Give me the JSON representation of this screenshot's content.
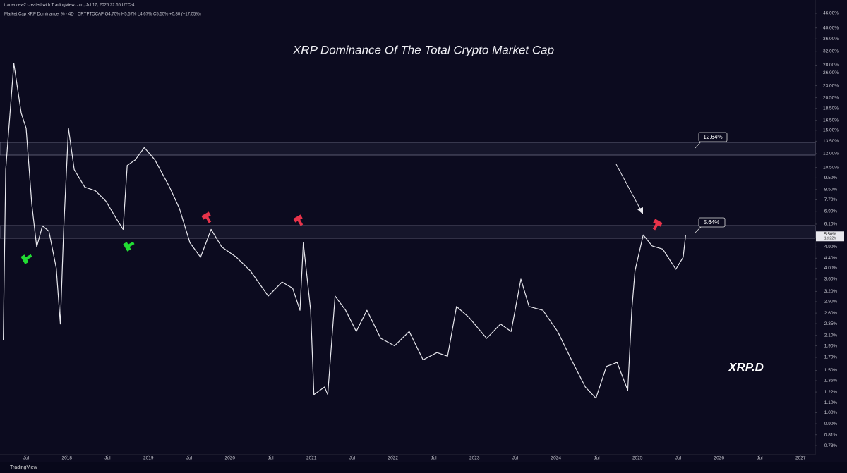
{
  "header": {
    "credit": "traderview2 created with TradingView.com, Jul 17, 2025 22:55 UTC-4",
    "symbol": "Market Cap XRP Dominance, % · 4D · CRYPTOCAP  O4.70% H5.57% L4.67% C5.50% +0.80 (+17.05%)"
  },
  "footer": "TradingView",
  "chart_data": {
    "type": "line",
    "title": "XRP Dominance Of The Total Crypto Market Cap",
    "watermark": "XRP.D",
    "price_label": "5.50%",
    "countdown": "1d 22h",
    "annotations": [
      "12.64%",
      "5.64%"
    ],
    "log_scale": true,
    "grid": false,
    "xlim": [
      2017.18,
      2027.18
    ],
    "ylim": [
      0.669,
      52.3
    ],
    "xticks": [
      {
        "value": 2017.5,
        "label": "Jul"
      },
      2018,
      {
        "value": 2018.5,
        "label": "Jul"
      },
      2019,
      {
        "value": 2019.5,
        "label": "Jul"
      },
      2020,
      {
        "value": 2020.5,
        "label": "Jul"
      },
      2021,
      {
        "value": 2021.5,
        "label": "Jul"
      },
      2022,
      {
        "value": 2022.5,
        "label": "Jul"
      },
      2023,
      {
        "value": 2023.5,
        "label": "Jul"
      },
      2024,
      {
        "value": 2024.5,
        "label": "Jul"
      },
      2025,
      {
        "value": 2025.5,
        "label": "Jul"
      },
      2026,
      {
        "value": 2026.5,
        "label": "Jul"
      },
      2027
    ],
    "yticks": [
      {
        "value": 46,
        "label": "46.00%"
      },
      {
        "value": 40,
        "label": "40.00%"
      },
      {
        "value": 36,
        "label": "36.00%"
      },
      {
        "value": 32,
        "label": "32.00%"
      },
      {
        "value": 28,
        "label": "28.00%"
      },
      {
        "value": 26,
        "label": "26.00%"
      },
      {
        "value": 23,
        "label": "23.00%"
      },
      {
        "value": 20.5,
        "label": "20.50%"
      },
      {
        "value": 18.5,
        "label": "18.50%"
      },
      {
        "value": 16.5,
        "label": "16.50%"
      },
      {
        "value": 15,
        "label": "15.00%"
      },
      {
        "value": 13.5,
        "label": "13.50%"
      },
      {
        "value": 12,
        "label": "12.00%"
      },
      {
        "value": 10.5,
        "label": "10.50%"
      },
      {
        "value": 9.5,
        "label": "9.50%"
      },
      {
        "value": 8.5,
        "label": "8.50%"
      },
      {
        "value": 7.7,
        "label": "7.70%"
      },
      {
        "value": 6.9,
        "label": "6.90%"
      },
      {
        "value": 6.1,
        "label": "6.10%"
      },
      {
        "value": 4.9,
        "label": "4.90%"
      },
      {
        "value": 4.4,
        "label": "4.40%"
      },
      {
        "value": 4,
        "label": "4.00%"
      },
      {
        "value": 3.6,
        "label": "3.60%"
      },
      {
        "value": 3.2,
        "label": "3.20%"
      },
      {
        "value": 2.9,
        "label": "2.90%"
      },
      {
        "value": 2.6,
        "label": "2.60%"
      },
      {
        "value": 2.35,
        "label": "2.35%"
      },
      {
        "value": 2.1,
        "label": "2.10%"
      },
      {
        "value": 1.9,
        "label": "1.90%"
      },
      {
        "value": 1.7,
        "label": "1.70%"
      },
      {
        "value": 1.5,
        "label": "1.50%"
      },
      {
        "value": 1.36,
        "label": "1.36%"
      },
      {
        "value": 1.22,
        "label": "1.22%"
      },
      {
        "value": 1.1,
        "label": "1.10%"
      },
      {
        "value": 1,
        "label": "1.00%"
      },
      {
        "value": 0.9,
        "label": "0.90%"
      },
      {
        "value": 0.81,
        "label": "0.81%"
      },
      {
        "value": 0.73,
        "label": "0.73%"
      }
    ],
    "series": [
      {
        "name": "XRP.D",
        "color": "#e8e8ee",
        "x": [
          2017.22,
          2017.25,
          2017.35,
          2017.44,
          2017.5,
          2017.57,
          2017.63,
          2017.7,
          2017.78,
          2017.87,
          2017.92,
          2017.96,
          2018.02,
          2018.09,
          2018.22,
          2018.35,
          2018.48,
          2018.61,
          2018.69,
          2018.74,
          2018.84,
          2018.95,
          2019.08,
          2019.26,
          2019.38,
          2019.51,
          2019.64,
          2019.77,
          2019.9,
          2020.08,
          2020.25,
          2020.47,
          2020.64,
          2020.77,
          2020.86,
          2020.9,
          2020.99,
          2021.03,
          2021.16,
          2021.2,
          2021.29,
          2021.42,
          2021.55,
          2021.68,
          2021.85,
          2022.02,
          2022.2,
          2022.37,
          2022.54,
          2022.67,
          2022.78,
          2022.93,
          2023.15,
          2023.32,
          2023.45,
          2023.57,
          2023.67,
          2023.84,
          2024.02,
          2024.19,
          2024.36,
          2024.49,
          2024.62,
          2024.75,
          2024.88,
          2024.93,
          2024.97,
          2025.07,
          2025.18,
          2025.31,
          2025.47,
          2025.56,
          2025.59
        ],
        "values": [
          2.0,
          10.3,
          28.5,
          17.7,
          15.3,
          7.4,
          4.9,
          6.0,
          5.7,
          4.0,
          2.34,
          5.7,
          15.3,
          10.3,
          8.7,
          8.4,
          7.6,
          6.4,
          5.8,
          10.7,
          11.3,
          12.7,
          11.3,
          8.7,
          7.1,
          5.1,
          4.44,
          5.8,
          4.9,
          4.44,
          3.9,
          3.06,
          3.5,
          3.3,
          2.67,
          5.1,
          2.67,
          1.19,
          1.28,
          1.19,
          3.06,
          2.67,
          2.18,
          2.67,
          2.04,
          1.9,
          2.18,
          1.66,
          1.78,
          1.72,
          2.77,
          2.5,
          2.04,
          2.34,
          2.18,
          3.6,
          2.77,
          2.67,
          2.18,
          1.66,
          1.28,
          1.15,
          1.56,
          1.62,
          1.24,
          2.67,
          3.9,
          5.5,
          4.95,
          4.8,
          3.96,
          4.44,
          5.5
        ]
      }
    ]
  }
}
